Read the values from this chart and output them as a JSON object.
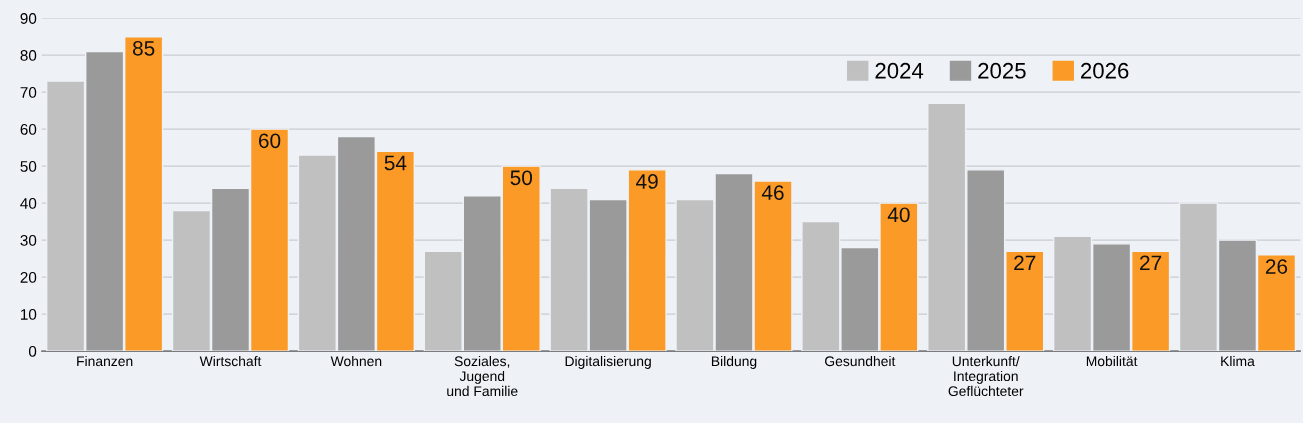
{
  "chart_data": {
    "type": "bar",
    "categories": [
      "Finanzen",
      "Wirtschaft",
      "Wohnen",
      "Soziales,\nJugend\nund Familie",
      "Digitalisierung",
      "Bildung",
      "Gesundheit",
      "Unterkunft/\nIntegration\nGeflüchteter",
      "Mobilität",
      "Klima"
    ],
    "series": [
      {
        "name": "2024",
        "color": "#c0c0c0",
        "values": [
          73,
          38,
          53,
          27,
          44,
          41,
          35,
          67,
          31,
          40
        ]
      },
      {
        "name": "2025",
        "color": "#9a9a9a",
        "values": [
          81,
          44,
          58,
          42,
          41,
          48,
          28,
          49,
          29,
          30
        ]
      },
      {
        "name": "2026",
        "color": "#fb9a26",
        "values": [
          85,
          60,
          54,
          50,
          49,
          46,
          40,
          27,
          27,
          26
        ],
        "value_labels": [
          "85",
          "60",
          "54",
          "50",
          "49",
          "46",
          "40",
          "27",
          "27",
          "26"
        ]
      }
    ],
    "ylim": [
      0,
      90
    ],
    "yticks": [
      0,
      10,
      20,
      30,
      40,
      50,
      60,
      70,
      80,
      90
    ],
    "grid": "y",
    "legend": "top right"
  }
}
